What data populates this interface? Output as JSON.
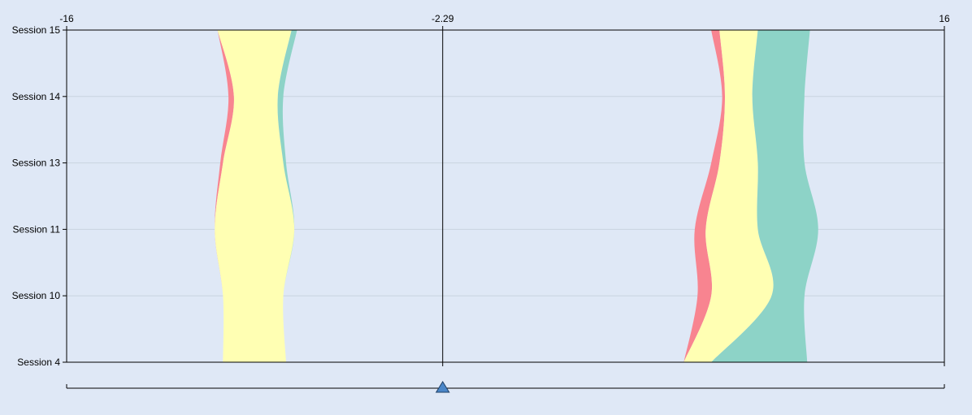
{
  "chart_data": {
    "type": "area",
    "x_axis": {
      "min": -16,
      "max": 16,
      "tick_labels": [
        {
          "value": -16,
          "label": "-16"
        },
        {
          "value": -2.29,
          "label": "-2.29"
        },
        {
          "value": 16,
          "label": "16"
        }
      ],
      "center": -2.29
    },
    "y_axis": {
      "categories": [
        "Session 4",
        "Session 10",
        "Session 11",
        "Session 13",
        "Session 14",
        "Session 15"
      ],
      "order": "bottom-to-top"
    },
    "grid": {
      "horizontal": true,
      "vertical": false
    },
    "colors": {
      "series_pink": "#f88490",
      "series_yellow": "#ffffb3",
      "series_teal": "#8dd3c7",
      "background": "#dfe8f6",
      "slider_handle": "#4a86c8"
    },
    "streams": [
      {
        "side": "left",
        "boundaries": [
          {
            "fill": "series_pink",
            "left": [
              -10.3,
              -10.3,
              -10.6,
              -10.4,
              -10.1,
              -10.5
            ],
            "right": [
              -10.3,
              -10.3,
              -10.6,
              -10.3,
              -9.9,
              -10.5
            ]
          },
          {
            "fill": "series_yellow",
            "left": [
              -10.3,
              -10.3,
              -10.6,
              -10.3,
              -9.9,
              -10.5
            ],
            "right": [
              -8.0,
              -8.1,
              -7.7,
              -8.1,
              -8.3,
              -7.8
            ]
          },
          {
            "fill": "series_teal",
            "left": [
              -8.0,
              -8.1,
              -7.7,
              -8.1,
              -8.3,
              -7.8
            ],
            "right": [
              -8.0,
              -8.1,
              -7.7,
              -8.0,
              -8.1,
              -7.6
            ]
          }
        ]
      },
      {
        "side": "right",
        "boundaries": [
          {
            "fill": "series_pink",
            "left": [
              6.5,
              7.0,
              6.9,
              7.5,
              7.9,
              7.5
            ],
            "right": [
              6.5,
              7.5,
              7.3,
              7.8,
              8.0,
              7.8
            ]
          },
          {
            "fill": "series_yellow",
            "left": [
              6.5,
              7.5,
              7.3,
              7.8,
              8.0,
              7.8
            ],
            "right": [
              7.5,
              9.7,
              9.2,
              9.2,
              9.0,
              9.2
            ]
          },
          {
            "fill": "series_teal",
            "left": [
              7.5,
              9.7,
              9.2,
              9.2,
              9.0,
              9.2
            ],
            "right": [
              11.0,
              10.9,
              11.4,
              10.9,
              10.9,
              11.1
            ]
          }
        ]
      }
    ],
    "slider": {
      "value": -2.29,
      "min": -16,
      "max": 16
    }
  }
}
